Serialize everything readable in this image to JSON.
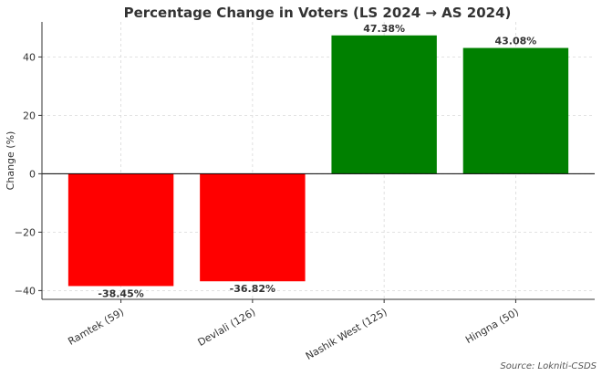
{
  "chart_data": {
    "type": "bar",
    "title": "Percentage Change in Voters (LS 2024 → AS 2024)",
    "xlabel": "",
    "ylabel": "Change (%)",
    "categories": [
      "Ramtek (59)",
      "Devlali (126)",
      "Nashik West (125)",
      "Hingna (50)"
    ],
    "values": [
      -38.45,
      -36.82,
      47.38,
      43.08
    ],
    "data_labels": [
      "-38.45%",
      "-36.82%",
      "47.38%",
      "43.08%"
    ],
    "colors": [
      "#ff0000",
      "#ff0000",
      "#008000",
      "#008000"
    ],
    "ylim": [
      -43,
      52
    ],
    "yticks": [
      -40,
      -20,
      0,
      20,
      40
    ],
    "ytick_labels": [
      "−40",
      "−20",
      "0",
      "20",
      "40"
    ],
    "grid": true,
    "zero_line": true,
    "source": "Source: Lokniti-CSDS"
  }
}
